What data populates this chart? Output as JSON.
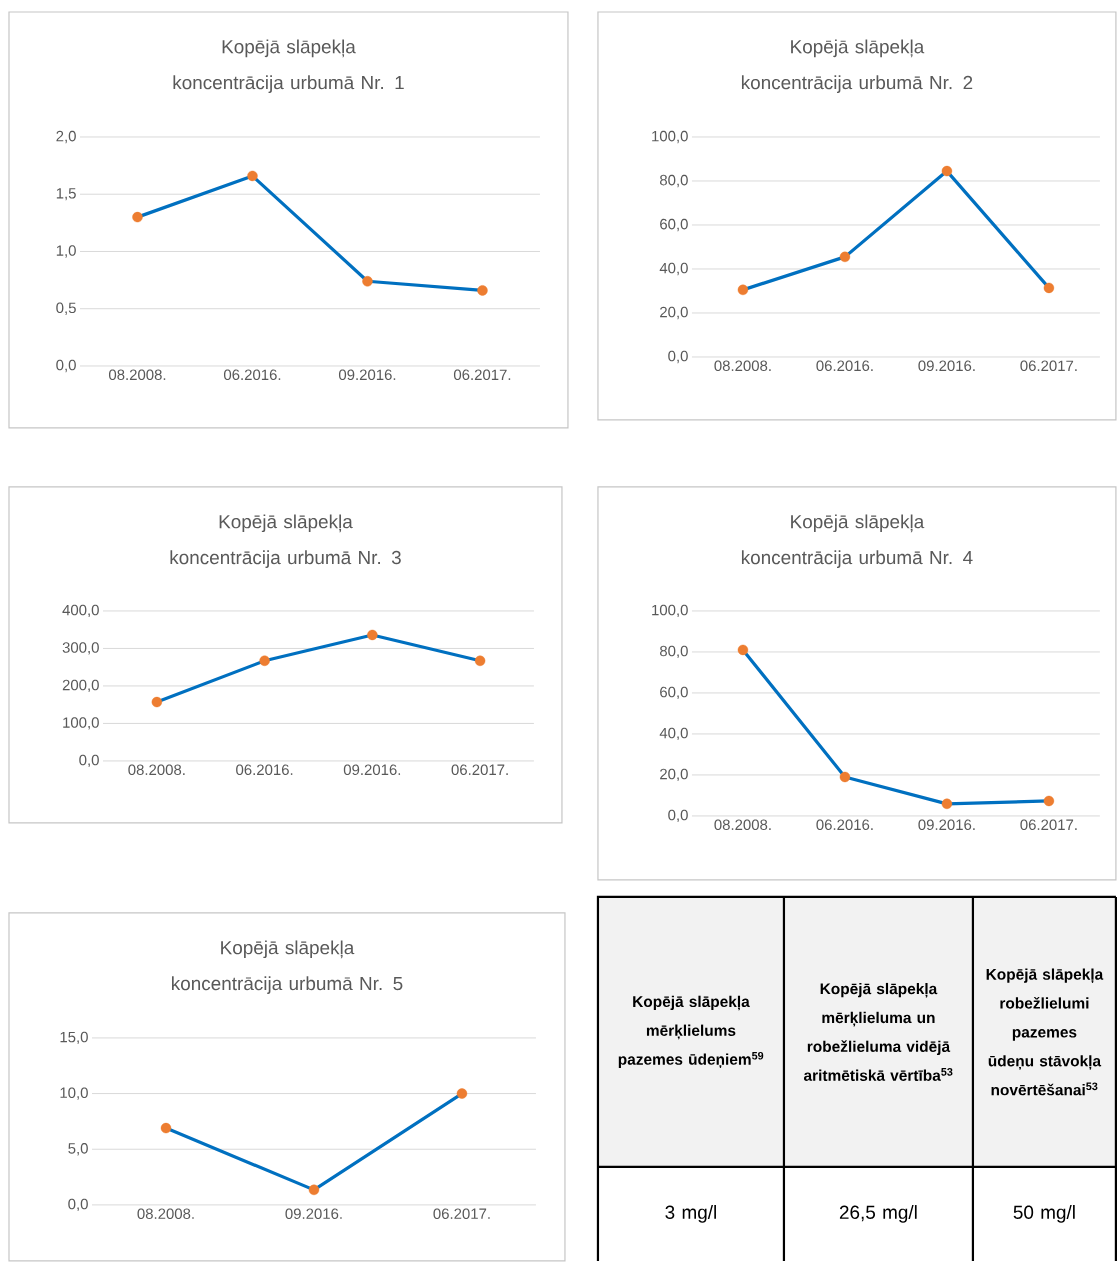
{
  "chart_data": [
    {
      "type": "line",
      "title": "Kopējā slāpekļa koncentrācija urbumā Nr. 1",
      "categories": [
        "08.2008.",
        "06.2016.",
        "09.2016.",
        "06.2017."
      ],
      "values": [
        1.3,
        1.66,
        0.74,
        0.66
      ],
      "color": "#0070c0",
      "colors": [
        "#ed7d31",
        "#ed7d31",
        "#ed7d31",
        "#ed7d31"
      ],
      "marker": "circle",
      "grid": "y",
      "ylim": [
        0,
        2
      ],
      "yticks": [
        {
          "value": 0,
          "label": "0,0"
        },
        {
          "value": 0.5,
          "label": "0,5"
        },
        {
          "value": 1,
          "label": "1,0"
        },
        {
          "value": 1.5,
          "label": "1,5"
        },
        {
          "value": 2,
          "label": "2,0"
        }
      ]
    },
    {
      "type": "line",
      "title": "Kopējā slāpekļa koncentrācija urbumā Nr. 2",
      "categories": [
        "08.2008.",
        "06.2016.",
        "09.2016.",
        "06.2017."
      ],
      "values": [
        30.5,
        45.5,
        84.5,
        31.4
      ],
      "color": "#0070c0",
      "colors": [
        "#ed7d31",
        "#ed7d31",
        "#ed7d31",
        "#ed7d31"
      ],
      "marker": "circle",
      "grid": "y",
      "ylim": [
        0,
        100
      ],
      "yticks": [
        {
          "value": 0,
          "label": "0,0"
        },
        {
          "value": 20,
          "label": "20,0"
        },
        {
          "value": 40,
          "label": "40,0"
        },
        {
          "value": 60,
          "label": "60,0"
        },
        {
          "value": 80,
          "label": "80,0"
        },
        {
          "value": 100,
          "label": "100,0"
        }
      ]
    },
    {
      "type": "line",
      "title": "Kopējā slāpekļa koncentrācija urbumā Nr. 3",
      "categories": [
        "08.2008.",
        "06.2016.",
        "09.2016.",
        "06.2017."
      ],
      "values": [
        157,
        267,
        336,
        267
      ],
      "color": "#0070c0",
      "colors": [
        "#ed7d31",
        "#ed7d31",
        "#ed7d31",
        "#ed7d31"
      ],
      "marker": "circle",
      "grid": "y",
      "ylim": [
        0,
        400
      ],
      "yticks": [
        {
          "value": 0,
          "label": "0,0"
        },
        {
          "value": 100,
          "label": "100,0"
        },
        {
          "value": 200,
          "label": "200,0"
        },
        {
          "value": 300,
          "label": "300,0"
        },
        {
          "value": 400,
          "label": "400,0"
        }
      ]
    },
    {
      "type": "line",
      "title": "Kopējā slāpekļa koncentrācija urbumā Nr. 4",
      "categories": [
        "08.2008.",
        "06.2016.",
        "09.2016.",
        "06.2017."
      ],
      "values": [
        81,
        19,
        5.9,
        7.3
      ],
      "color": "#0070c0",
      "colors": [
        "#ed7d31",
        "#ed7d31",
        "#ed7d31",
        "#ed7d31"
      ],
      "marker": "circle",
      "grid": "y",
      "ylim": [
        0,
        100
      ],
      "yticks": [
        {
          "value": 0,
          "label": "0,0"
        },
        {
          "value": 20,
          "label": "20,0"
        },
        {
          "value": 40,
          "label": "40,0"
        },
        {
          "value": 60,
          "label": "60,0"
        },
        {
          "value": 80,
          "label": "80,0"
        },
        {
          "value": 100,
          "label": "100,0"
        }
      ]
    },
    {
      "type": "line",
      "title": "Kopējā slāpekļa koncentrācija urbumā Nr. 5",
      "categories": [
        "08.2008.",
        "09.2016.",
        "06.2017."
      ],
      "values": [
        6.9,
        1.35,
        10
      ],
      "color": "#0070c0",
      "colors": [
        "#ed7d31",
        "#ed7d31",
        "#ed7d31"
      ],
      "marker": "circle",
      "grid": "y",
      "ylim": [
        0,
        15
      ],
      "yticks": [
        {
          "value": 0,
          "label": "0,0"
        },
        {
          "value": 5,
          "label": "5,0"
        },
        {
          "value": 10,
          "label": "10,0"
        },
        {
          "value": 15,
          "label": "15,0"
        }
      ]
    },
    {
      "type": "other",
      "annotations": [
        "Kopējā slāpekļa mērķlielums pazemes ūdeņiem$^{59}$",
        "Kopējā slāpekļa mērķlieluma un robežlieluma vidējā aritmētiskā vērtība$^{53}$",
        "Kopējā slāpekļa robežlielumi pazemes ūdeņu stāvokļa novērtēšanai$^{53}$",
        "3 mg/l",
        "26,5 mg/l",
        "50 mg/l"
      ]
    }
  ]
}
